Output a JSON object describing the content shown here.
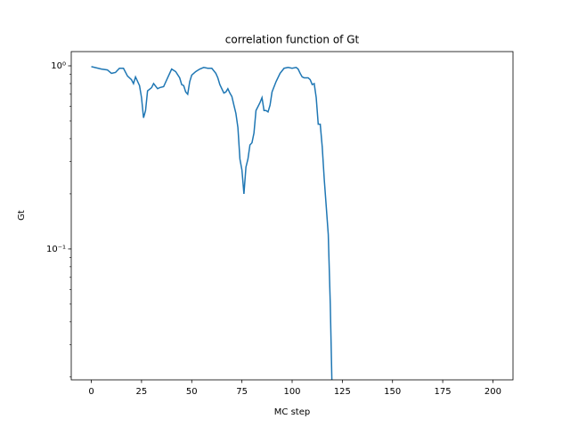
{
  "chart_data": {
    "type": "line",
    "title": "correlation function of Gt",
    "xlabel": "MC step",
    "ylabel": "Gt",
    "yscale": "log",
    "xlim": [
      -10,
      210
    ],
    "xticks": [
      0,
      25,
      50,
      75,
      100,
      125,
      150,
      175,
      200
    ],
    "ylim": [
      0.0193,
      1.196
    ],
    "yticks": [
      {
        "value": 0.1,
        "label": "10⁻¹"
      },
      {
        "value": 1,
        "label": "10⁰"
      }
    ],
    "yminorticks": [
      0.02,
      0.03,
      0.04,
      0.05,
      0.06,
      0.07,
      0.08,
      0.09,
      0.2,
      0.3,
      0.4,
      0.5,
      0.6,
      0.7,
      0.8,
      0.9
    ],
    "series": [
      {
        "name": "Gt",
        "color": "#1f77b4",
        "x": [
          0,
          5,
          8,
          10,
          12,
          14,
          16,
          18,
          20,
          21,
          22,
          24,
          25,
          26,
          27,
          28,
          30,
          31,
          33,
          34,
          36,
          38,
          40,
          42,
          44,
          45,
          46,
          47,
          48,
          49,
          50,
          52,
          54,
          56,
          58,
          60,
          62,
          63,
          64,
          66,
          67,
          68,
          69,
          70,
          71,
          72,
          73,
          74,
          75,
          76,
          77,
          78,
          79,
          80,
          81,
          82,
          84,
          85,
          86,
          87,
          88,
          89,
          90,
          92,
          94,
          96,
          98,
          100,
          102,
          103,
          104,
          105,
          106,
          108,
          109,
          110,
          111,
          112,
          113,
          114,
          115,
          116,
          117,
          118,
          119,
          120
        ],
        "values": [
          0.99,
          0.96,
          0.95,
          0.91,
          0.92,
          0.97,
          0.97,
          0.88,
          0.84,
          0.8,
          0.87,
          0.78,
          0.67,
          0.52,
          0.57,
          0.73,
          0.76,
          0.8,
          0.75,
          0.76,
          0.77,
          0.86,
          0.96,
          0.93,
          0.86,
          0.79,
          0.78,
          0.72,
          0.7,
          0.82,
          0.89,
          0.93,
          0.96,
          0.98,
          0.97,
          0.97,
          0.91,
          0.86,
          0.79,
          0.71,
          0.72,
          0.75,
          0.71,
          0.68,
          0.61,
          0.55,
          0.46,
          0.31,
          0.27,
          0.2,
          0.28,
          0.31,
          0.37,
          0.38,
          0.43,
          0.57,
          0.63,
          0.67,
          0.57,
          0.57,
          0.56,
          0.61,
          0.72,
          0.82,
          0.91,
          0.97,
          0.98,
          0.97,
          0.98,
          0.96,
          0.91,
          0.87,
          0.86,
          0.86,
          0.84,
          0.79,
          0.8,
          0.67,
          0.48,
          0.48,
          0.36,
          0.24,
          0.17,
          0.12,
          0.05,
          0.015
        ]
      }
    ]
  }
}
